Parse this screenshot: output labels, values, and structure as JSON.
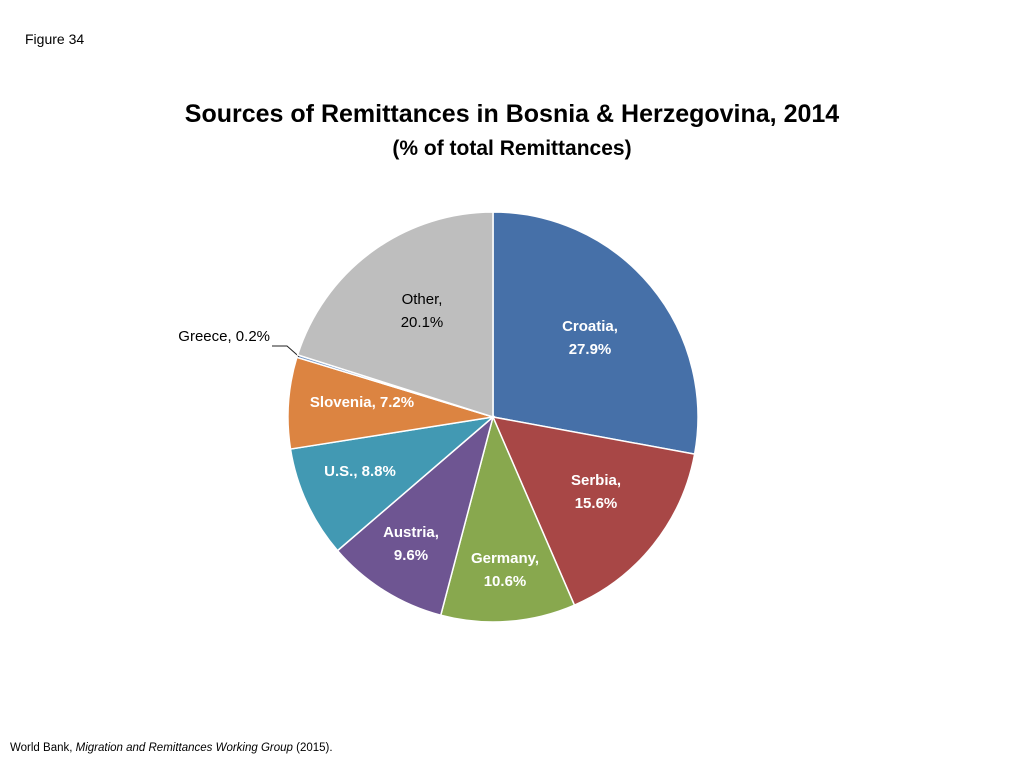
{
  "figure_label": "Figure 34",
  "source": {
    "prefix": "World Bank, ",
    "title": "Migration and Remittances Working Group",
    "suffix": " (2015)."
  },
  "colors": {
    "Croatia": "#4670a8",
    "Serbia": "#a84746",
    "Germany": "#88a84e",
    "Austria": "#6e5592",
    "U.S.": "#4299b3",
    "Slovenia": "#dc8441",
    "Greece": "#6f93c4",
    "Other": "#bebebe"
  },
  "chart_data": {
    "type": "pie",
    "title": "Sources of Remittances in Bosnia & Herzegovina, 2014",
    "subtitle": "(% of total Remittances)",
    "slices": [
      {
        "category": "Croatia",
        "value": 27.9,
        "label_lines": [
          "Croatia,",
          "27.9%"
        ]
      },
      {
        "category": "Serbia",
        "value": 15.6,
        "label_lines": [
          "Serbia,",
          "15.6%"
        ]
      },
      {
        "category": "Germany",
        "value": 10.6,
        "label_lines": [
          "Germany,",
          "10.6%"
        ]
      },
      {
        "category": "Austria",
        "value": 9.6,
        "label_lines": [
          "Austria,",
          "9.6%"
        ]
      },
      {
        "category": "U.S.",
        "value": 8.8,
        "label_lines": [
          "U.S., 8.8%"
        ]
      },
      {
        "category": "Slovenia",
        "value": 7.2,
        "label_lines": [
          "Slovenia, 7.2%"
        ]
      },
      {
        "category": "Greece",
        "value": 0.2,
        "label_lines": [
          "Greece, 0.2%"
        ]
      },
      {
        "category": "Other",
        "value": 20.1,
        "label_lines": [
          "Other,",
          "20.1%"
        ]
      }
    ]
  }
}
